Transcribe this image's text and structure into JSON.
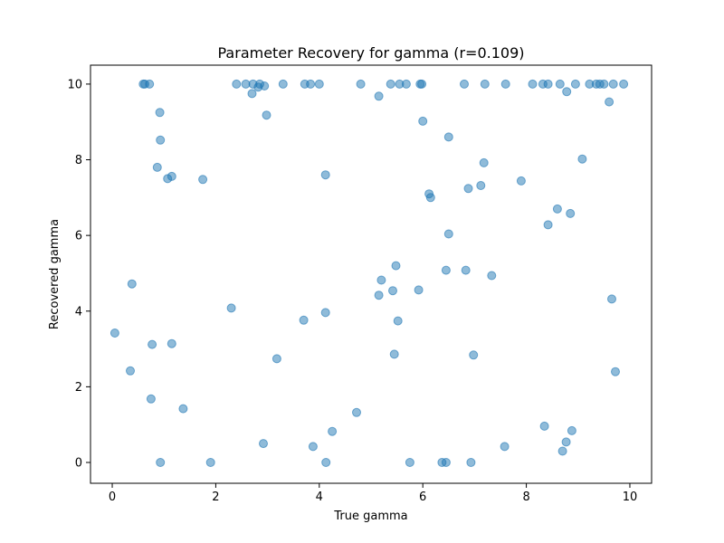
{
  "chart_data": {
    "type": "scatter",
    "title": "Parameter Recovery for gamma (r=0.109)",
    "xlabel": "True gamma",
    "ylabel": "Recovered gamma",
    "xlim": [
      -0.42,
      10.42
    ],
    "ylim": [
      -0.55,
      10.5
    ],
    "xticks": [
      0,
      2,
      4,
      6,
      8,
      10
    ],
    "yticks": [
      0,
      2,
      4,
      6,
      8,
      10
    ],
    "xtick_labels": [
      "0",
      "2",
      "4",
      "6",
      "8",
      "10"
    ],
    "ytick_labels": [
      "0",
      "2",
      "4",
      "6",
      "8",
      "10"
    ],
    "grid": false,
    "marker_color": "#1f77b4",
    "marker_alpha": 0.5,
    "points": [
      {
        "x": 0.6,
        "y": 10.0
      },
      {
        "x": 0.63,
        "y": 10.0
      },
      {
        "x": 0.72,
        "y": 10.0
      },
      {
        "x": 2.4,
        "y": 10.0
      },
      {
        "x": 2.58,
        "y": 10.0
      },
      {
        "x": 2.72,
        "y": 10.0
      },
      {
        "x": 2.85,
        "y": 10.0
      },
      {
        "x": 2.82,
        "y": 9.92
      },
      {
        "x": 2.94,
        "y": 9.95
      },
      {
        "x": 3.3,
        "y": 10.0
      },
      {
        "x": 3.72,
        "y": 10.0
      },
      {
        "x": 3.83,
        "y": 10.0
      },
      {
        "x": 4.0,
        "y": 10.0
      },
      {
        "x": 4.8,
        "y": 10.0
      },
      {
        "x": 5.38,
        "y": 10.0
      },
      {
        "x": 5.55,
        "y": 10.0
      },
      {
        "x": 5.68,
        "y": 10.0
      },
      {
        "x": 5.95,
        "y": 10.0
      },
      {
        "x": 5.98,
        "y": 10.0
      },
      {
        "x": 6.8,
        "y": 10.0
      },
      {
        "x": 7.2,
        "y": 10.0
      },
      {
        "x": 7.6,
        "y": 10.0
      },
      {
        "x": 8.12,
        "y": 10.0
      },
      {
        "x": 8.32,
        "y": 10.0
      },
      {
        "x": 8.42,
        "y": 10.0
      },
      {
        "x": 8.65,
        "y": 10.0
      },
      {
        "x": 8.95,
        "y": 10.0
      },
      {
        "x": 9.22,
        "y": 10.0
      },
      {
        "x": 9.35,
        "y": 10.0
      },
      {
        "x": 9.42,
        "y": 10.0
      },
      {
        "x": 9.5,
        "y": 10.0
      },
      {
        "x": 9.68,
        "y": 10.0
      },
      {
        "x": 9.88,
        "y": 10.0
      },
      {
        "x": 2.7,
        "y": 9.75
      },
      {
        "x": 5.15,
        "y": 9.68
      },
      {
        "x": 8.78,
        "y": 9.8
      },
      {
        "x": 9.6,
        "y": 9.53
      },
      {
        "x": 0.92,
        "y": 9.25
      },
      {
        "x": 2.98,
        "y": 9.18
      },
      {
        "x": 6.0,
        "y": 9.02
      },
      {
        "x": 0.93,
        "y": 8.52
      },
      {
        "x": 6.5,
        "y": 8.6
      },
      {
        "x": 9.08,
        "y": 8.02
      },
      {
        "x": 7.18,
        "y": 7.92
      },
      {
        "x": 0.87,
        "y": 7.8
      },
      {
        "x": 4.12,
        "y": 7.6
      },
      {
        "x": 1.15,
        "y": 7.56
      },
      {
        "x": 1.07,
        "y": 7.5
      },
      {
        "x": 1.75,
        "y": 7.48
      },
      {
        "x": 7.9,
        "y": 7.44
      },
      {
        "x": 7.12,
        "y": 7.32
      },
      {
        "x": 6.88,
        "y": 7.24
      },
      {
        "x": 6.12,
        "y": 7.1
      },
      {
        "x": 6.15,
        "y": 7.0
      },
      {
        "x": 8.6,
        "y": 6.7
      },
      {
        "x": 8.85,
        "y": 6.58
      },
      {
        "x": 8.42,
        "y": 6.28
      },
      {
        "x": 6.5,
        "y": 6.04
      },
      {
        "x": 5.48,
        "y": 5.2
      },
      {
        "x": 6.45,
        "y": 5.08
      },
      {
        "x": 6.83,
        "y": 5.08
      },
      {
        "x": 7.33,
        "y": 4.94
      },
      {
        "x": 5.2,
        "y": 4.82
      },
      {
        "x": 0.38,
        "y": 4.72
      },
      {
        "x": 5.42,
        "y": 4.54
      },
      {
        "x": 5.92,
        "y": 4.56
      },
      {
        "x": 5.15,
        "y": 4.42
      },
      {
        "x": 9.65,
        "y": 4.32
      },
      {
        "x": 2.3,
        "y": 4.08
      },
      {
        "x": 4.12,
        "y": 3.96
      },
      {
        "x": 3.7,
        "y": 3.76
      },
      {
        "x": 5.52,
        "y": 3.74
      },
      {
        "x": 0.05,
        "y": 3.42
      },
      {
        "x": 0.77,
        "y": 3.12
      },
      {
        "x": 1.15,
        "y": 3.14
      },
      {
        "x": 5.45,
        "y": 2.86
      },
      {
        "x": 6.98,
        "y": 2.84
      },
      {
        "x": 3.18,
        "y": 2.74
      },
      {
        "x": 0.35,
        "y": 2.42
      },
      {
        "x": 9.72,
        "y": 2.4
      },
      {
        "x": 0.75,
        "y": 1.68
      },
      {
        "x": 1.37,
        "y": 1.42
      },
      {
        "x": 4.72,
        "y": 1.32
      },
      {
        "x": 8.35,
        "y": 0.96
      },
      {
        "x": 8.88,
        "y": 0.84
      },
      {
        "x": 4.25,
        "y": 0.82
      },
      {
        "x": 8.77,
        "y": 0.54
      },
      {
        "x": 2.92,
        "y": 0.5
      },
      {
        "x": 3.88,
        "y": 0.42
      },
      {
        "x": 7.58,
        "y": 0.42
      },
      {
        "x": 8.7,
        "y": 0.3
      },
      {
        "x": 0.93,
        "y": 0.0
      },
      {
        "x": 1.9,
        "y": 0.0
      },
      {
        "x": 4.13,
        "y": 0.0
      },
      {
        "x": 5.75,
        "y": 0.0
      },
      {
        "x": 6.37,
        "y": 0.0
      },
      {
        "x": 6.45,
        "y": 0.0
      },
      {
        "x": 6.93,
        "y": 0.0
      }
    ]
  }
}
